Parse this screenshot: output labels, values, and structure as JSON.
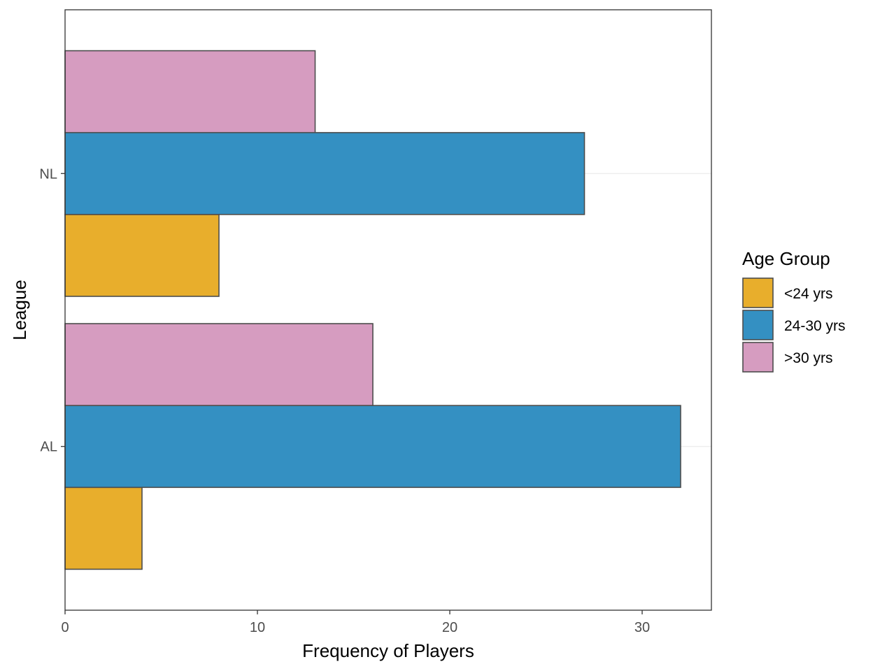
{
  "chart_data": {
    "type": "bar",
    "orientation": "horizontal",
    "categories": [
      "AL",
      "NL"
    ],
    "series": [
      {
        "name": "<24 yrs",
        "values": [
          4,
          8
        ],
        "color": "#E8AE2C"
      },
      {
        "name": "24-30 yrs",
        "values": [
          32,
          27
        ],
        "color": "#3490C2"
      },
      {
        "name": ">30 yrs",
        "values": [
          16,
          13
        ],
        "color": "#D69CC0"
      }
    ],
    "xlabel": "Frequency of Players",
    "ylabel": "League",
    "xlim": [
      0,
      33.6
    ],
    "xticks": [
      0,
      10,
      20,
      30
    ],
    "legend": {
      "title": "Age Group",
      "position": "right"
    },
    "grid": true,
    "bar_outline_color": "#4d4d4d"
  }
}
